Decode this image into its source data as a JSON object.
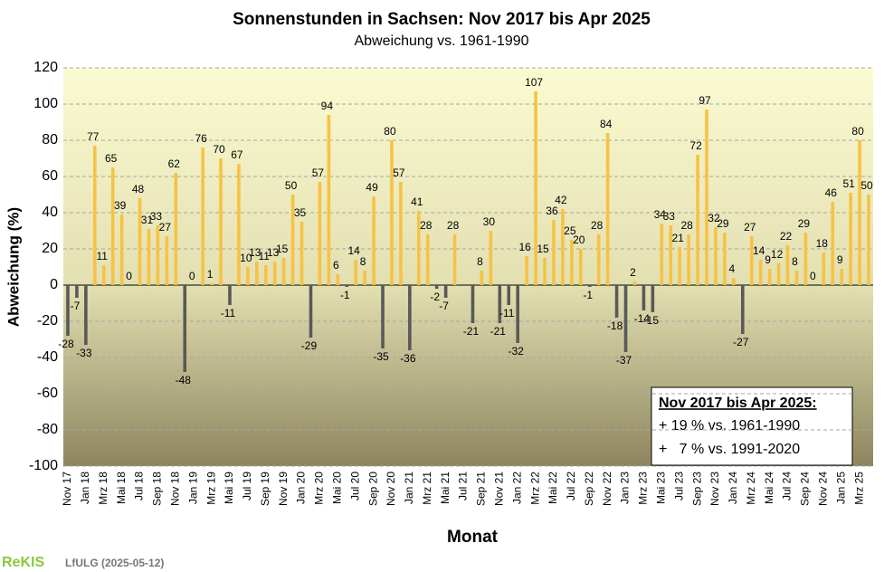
{
  "chart_data": {
    "type": "bar",
    "title": "Sonnenstunden  in Sachsen: Nov 2017 bis Apr 2025",
    "subtitle": "Abweichung vs. 1961-1990",
    "y_label": "Abweichung (%)",
    "x_label": "Monat",
    "categories": [
      "Nov 17",
      null,
      "Jan 18",
      null,
      "Mrz 18",
      null,
      "Mai 18",
      null,
      "Jul 18",
      null,
      "Sep 18",
      null,
      "Nov 18",
      null,
      "Jan 19",
      null,
      "Mrz 19",
      null,
      "Mai 19",
      null,
      "Jul 19",
      null,
      "Sep 19",
      null,
      "Nov 19",
      null,
      "Jan 20",
      null,
      "Mrz 20",
      null,
      "Mai 20",
      null,
      "Jul 20",
      null,
      "Sep 20",
      null,
      "Nov 20",
      null,
      "Jan 21",
      null,
      "Mrz 21",
      null,
      "Mai 21",
      null,
      "Jul 21",
      null,
      "Sep 21",
      null,
      "Nov 21",
      null,
      "Jan 22",
      null,
      "Mrz 22",
      null,
      "Mai 22",
      null,
      "Jul 22",
      null,
      "Sep 22",
      null,
      "Nov 22",
      null,
      "Jan 23",
      null,
      "Mrz 23",
      null,
      "Mai 23",
      null,
      "Jul 23",
      null,
      "Sep 23",
      null,
      "Nov 23",
      null,
      "Jan 24",
      null,
      "Mrz 24",
      null,
      "Mai 24",
      null,
      "Jul 24",
      null,
      "Sep 24",
      null,
      "Nov 24",
      null,
      "Jan 25",
      null,
      "Mrz 25",
      null
    ],
    "values": [
      -28,
      -7,
      -33,
      77,
      11,
      65,
      39,
      0,
      48,
      31,
      33,
      27,
      62,
      -48,
      0,
      76,
      1,
      70,
      -11,
      67,
      10,
      13,
      11,
      13,
      15,
      50,
      35,
      -29,
      57,
      94,
      6,
      -1,
      14,
      8,
      49,
      -35,
      80,
      57,
      -36,
      41,
      28,
      -2,
      -7,
      28,
      null,
      -21,
      8,
      30,
      -21,
      -11,
      -32,
      16,
      107,
      15,
      36,
      42,
      25,
      20,
      -1,
      28,
      84,
      -18,
      -37,
      2,
      -14,
      -15,
      34,
      33,
      21,
      28,
      72,
      97,
      32,
      29,
      4,
      -27,
      27,
      14,
      9,
      12,
      22,
      8,
      29,
      0,
      18,
      46,
      9,
      51,
      80,
      50
    ],
    "positive_color": "#f7c244",
    "negative_color": "#595959",
    "ylim": [
      -100,
      120
    ],
    "yticks": [
      -100,
      -80,
      -60,
      -40,
      -20,
      0,
      20,
      40,
      60,
      80,
      100,
      120
    ],
    "grid": true,
    "annotation": {
      "title": "Nov 2017 bis Apr 2025:",
      "lines": [
        "+ 19 % vs. 1961-1990",
        "+   7 % vs. 1991-2020"
      ]
    },
    "footer": {
      "logo": "ReKIS",
      "source": "LfULG (2025-05-12)"
    }
  }
}
